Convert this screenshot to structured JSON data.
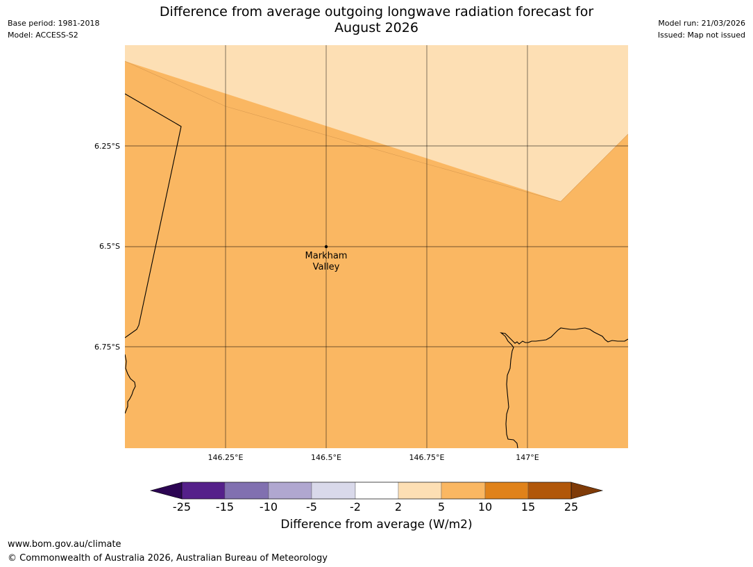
{
  "header": {
    "title_line1": "Difference from average outgoing longwave radiation forecast for",
    "title_line2": "August 2026",
    "base_period": "Base period: 1981-2018",
    "model": "Model: ACCESS-S2",
    "model_run": "Model run: 21/03/2026",
    "issued": "Issued: Map not issued"
  },
  "map": {
    "latitude_labels": [
      "6.25°S",
      "6.5°S",
      "6.75°S"
    ],
    "longitude_labels": [
      "146.25°E",
      "146.5°E",
      "146.75°E",
      "147°E"
    ],
    "place": {
      "name_line1": "Markham",
      "name_line2": "Valley",
      "lat": -6.5,
      "lon": 146.5
    },
    "fill_colors": {
      "band_2_to_5": "#fddfb4",
      "band_5_to_10": "#fab762"
    }
  },
  "colorbar": {
    "title": "Difference from average (W/m2)",
    "tick_labels": [
      "-25",
      "-15",
      "-10",
      "-5",
      "-2",
      "2",
      "5",
      "10",
      "15",
      "25"
    ],
    "colors": [
      "#55208a",
      "#8170b0",
      "#b0a7d0",
      "#d9d9ea",
      "#ffffff",
      "#fddfb4",
      "#fab762",
      "#e0821a",
      "#b1570a"
    ],
    "under_color": "#2c0553",
    "over_color": "#7f3b08"
  },
  "footer": {
    "url": "www.bom.gov.au/climate",
    "copyright": "© Commonwealth of Australia 2026, Australian Bureau of Meteorology"
  }
}
